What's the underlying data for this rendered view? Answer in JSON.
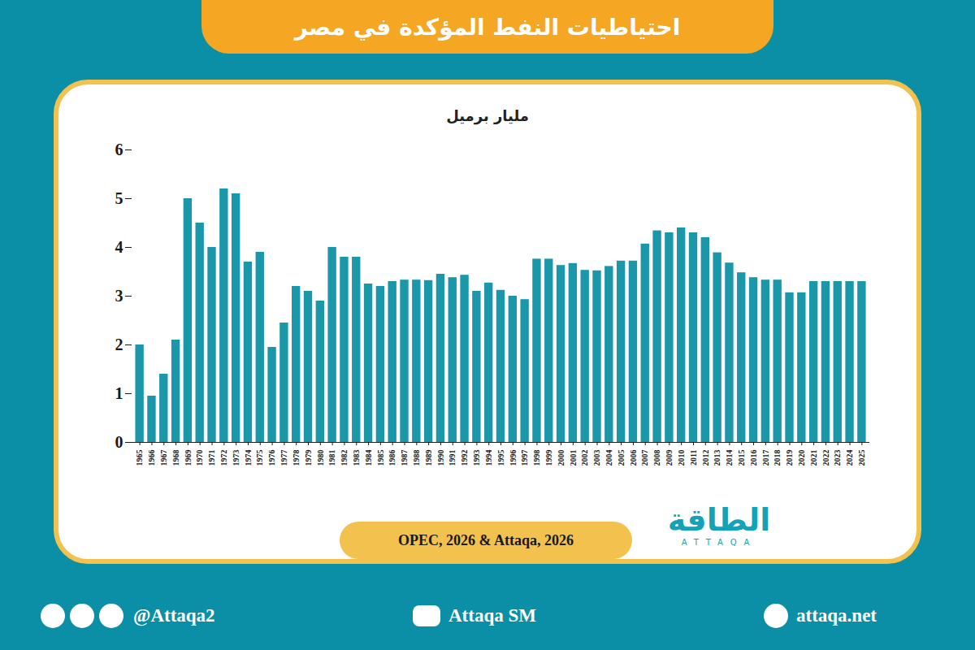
{
  "chart_data": {
    "type": "bar",
    "title": "احتياطيات النفط المؤكدة في مصر",
    "ylabel": "مليار برميل",
    "categories": [
      "1965",
      "1966",
      "1967",
      "1968",
      "1969",
      "1970",
      "1971",
      "1972",
      "1973",
      "1974",
      "1975",
      "1976",
      "1977",
      "1978",
      "1979",
      "1980",
      "1981",
      "1982",
      "1983",
      "1984",
      "1985",
      "1986",
      "1987",
      "1988",
      "1989",
      "1990",
      "1991",
      "1992",
      "1993",
      "1994",
      "1995",
      "1996",
      "1997",
      "1998",
      "1999",
      "2000",
      "2001",
      "2002",
      "2003",
      "2004",
      "2005",
      "2006",
      "2007",
      "2008",
      "2009",
      "2010",
      "2011",
      "2012",
      "2013",
      "2014",
      "2015",
      "2016",
      "2017",
      "2018",
      "2019",
      "2020",
      "2021",
      "2022",
      "2023",
      "2024",
      "2025"
    ],
    "values": [
      2.0,
      0.95,
      1.4,
      2.1,
      5.0,
      4.5,
      4.0,
      5.2,
      5.1,
      3.7,
      3.9,
      1.95,
      2.45,
      3.2,
      3.1,
      2.9,
      4.0,
      3.8,
      3.8,
      3.25,
      3.2,
      3.3,
      3.33,
      3.33,
      3.32,
      3.45,
      3.38,
      3.43,
      3.1,
      3.27,
      3.12,
      3.0,
      2.93,
      3.76,
      3.76,
      3.63,
      3.67,
      3.53,
      3.52,
      3.61,
      3.72,
      3.72,
      4.07,
      4.34,
      4.3,
      4.4,
      4.3,
      4.2,
      3.89,
      3.68,
      3.48,
      3.38,
      3.33,
      3.33,
      3.07,
      3.07,
      3.3,
      3.3,
      3.3,
      3.3,
      3.3
    ],
    "color": "#1a98aa",
    "ylim": [
      0,
      6
    ],
    "yticks": [
      0,
      1,
      2,
      3,
      4,
      5,
      6
    ],
    "grid": false
  },
  "source": "OPEC, 2026 & Attaqa, 2026",
  "logo": {
    "name": "الطاقة",
    "latin": "ATTAQA"
  },
  "footer": {
    "social": "@Attaqa2",
    "youtube": "Attaqa SM",
    "website": "attaqa.net"
  }
}
